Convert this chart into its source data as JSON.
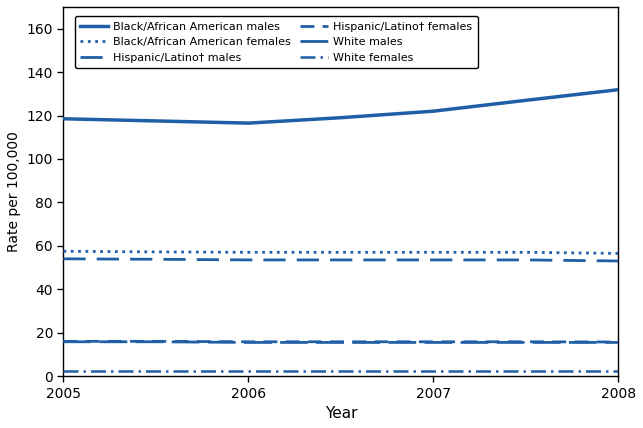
{
  "years": [
    2005,
    2005.5,
    2006,
    2006.5,
    2007,
    2007.5,
    2008
  ],
  "black_african_american_males": [
    118.5,
    117.5,
    116.5,
    119.0,
    122.0,
    127.0,
    131.9
  ],
  "black_african_american_females": [
    57.5,
    57.2,
    57.0,
    57.0,
    57.0,
    57.0,
    56.5
  ],
  "hispanic_latino_males": [
    54.0,
    53.8,
    53.5,
    53.5,
    53.5,
    53.5,
    53.0
  ],
  "hispanic_latino_females": [
    16.0,
    16.0,
    15.8,
    15.8,
    15.8,
    15.8,
    15.7
  ],
  "white_males": [
    15.8,
    15.8,
    15.5,
    15.5,
    15.5,
    15.5,
    15.5
  ],
  "white_females": [
    2.5,
    2.5,
    2.5,
    2.5,
    2.5,
    2.5,
    2.5
  ],
  "color": "#1f5fa6",
  "background": "#ffffff",
  "ylabel": "Rate per 100,000",
  "xlabel": "Year",
  "ylim": [
    0,
    170
  ],
  "yticks": [
    0,
    20,
    40,
    60,
    80,
    100,
    120,
    140,
    160
  ],
  "legend_labels": [
    "Black/African American males",
    "Black/African American females",
    "Hispanic/Latino† males",
    "Hispanic/Latino† females",
    "White males",
    "White females"
  ]
}
